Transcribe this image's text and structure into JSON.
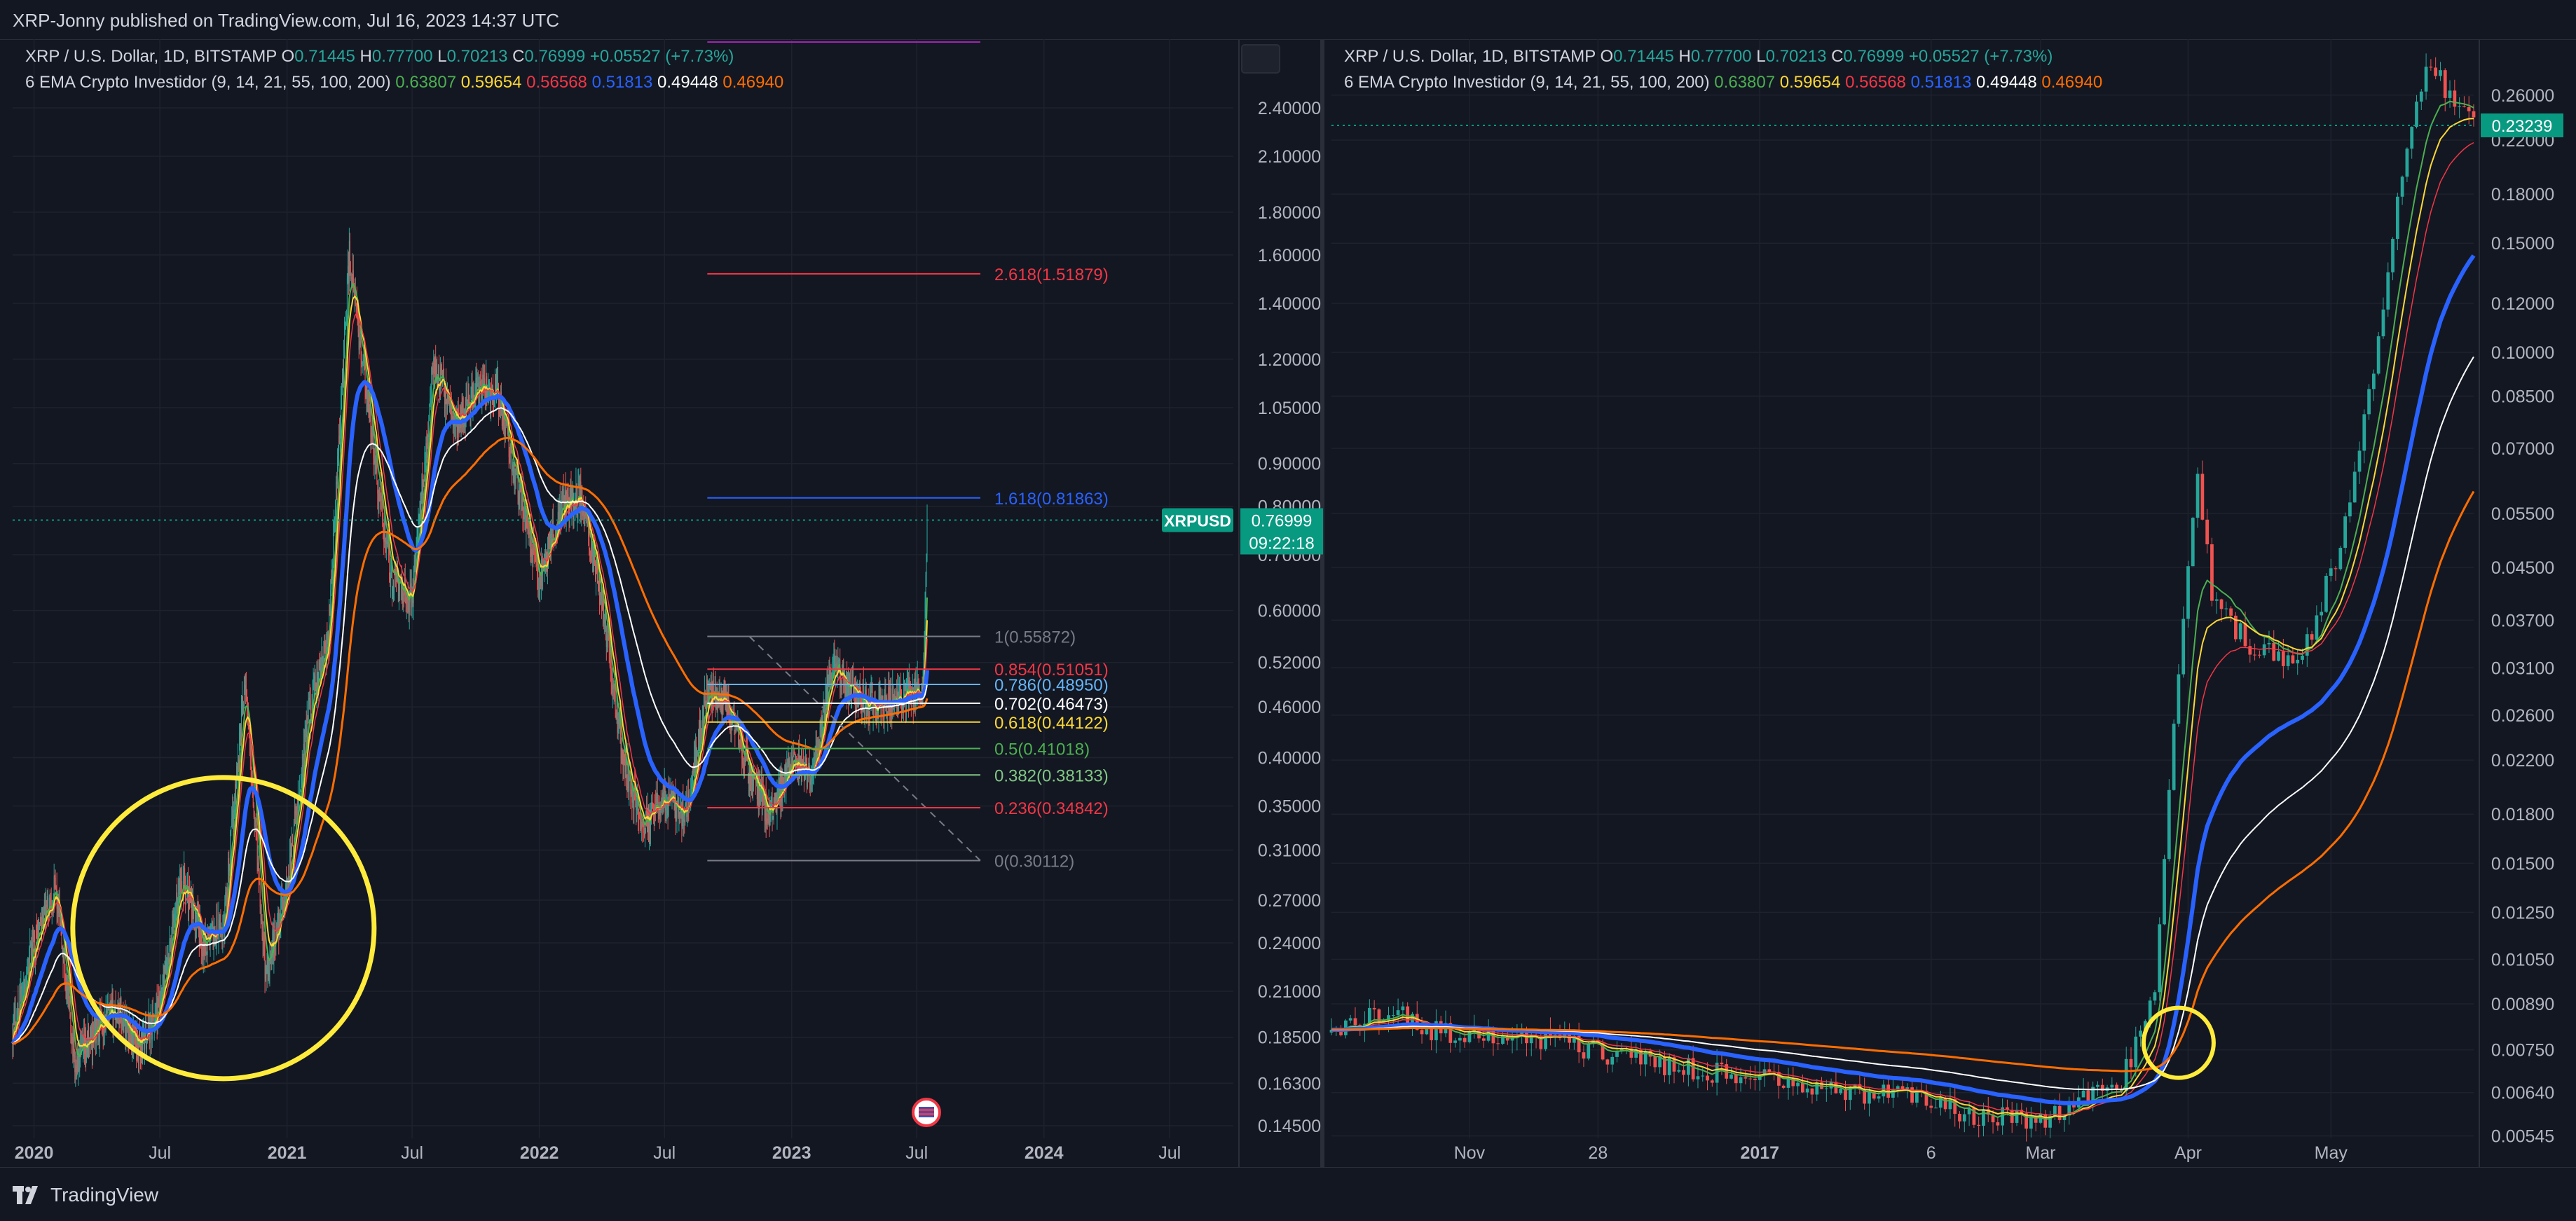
{
  "header": {
    "published_text": "XRP-Jonny published on TradingView.com, Jul 16, 2023 14:37 UTC"
  },
  "footer": {
    "brand": "TradingView"
  },
  "colors": {
    "ema9": "#4caf50",
    "ema14": "#fdd835",
    "ema21": "#f23645",
    "ema55": "#2962ff",
    "ema100": "#ffffff",
    "ema200": "#ff6d00",
    "up": "#26a69a",
    "down": "#ef5350",
    "price_label": "#089981",
    "highlight_circle": "#ffeb3b"
  },
  "chart_data": [
    {
      "type": "line",
      "panel": "left",
      "legend_line1": {
        "symbol": "XRP / U.S. Dollar, 1D, BITSTAMP",
        "o_label": "O",
        "o_value": "0.71445",
        "h_label": "H",
        "h_value": "0.77700",
        "l_label": "L",
        "l_value": "0.70213",
        "c_label": "C",
        "c_value": "0.76999",
        "change": "+0.05527 (+7.73%)"
      },
      "legend_line2": {
        "indicator": "6 EMA Crypto Investidor (9, 14, 21, 55, 100, 200)",
        "values": [
          "0.63807",
          "0.59654",
          "0.56568",
          "0.51813",
          "0.49448",
          "0.46940"
        ]
      },
      "yscale": "log",
      "ylim": [
        0.14,
        2.9
      ],
      "y_ticks": [
        2.4,
        2.1,
        1.8,
        1.6,
        1.4,
        1.2,
        1.05,
        0.9,
        0.8,
        0.7,
        0.6,
        0.52,
        0.46,
        0.4,
        0.35,
        0.31,
        0.27,
        0.24,
        0.21,
        0.185,
        0.163,
        0.145
      ],
      "y_tick_labels": [
        "2.40000",
        "2.10000",
        "1.80000",
        "1.60000",
        "1.40000",
        "1.20000",
        "1.05000",
        "0.90000",
        "0.80000",
        "0.70000",
        "0.60000",
        "0.52000",
        "0.46000",
        "0.40000",
        "0.35000",
        "0.31000",
        "0.27000",
        "0.24000",
        "0.21000",
        "0.18500",
        "0.16300",
        "0.14500"
      ],
      "x_ticks": [
        "2020",
        "Jul",
        "2021",
        "Jul",
        "2022",
        "Jul",
        "2023",
        "Jul",
        "2024",
        "Jul"
      ],
      "x_tick_positions": [
        "2020-01",
        "2020-07",
        "2021-01",
        "2021-07",
        "2022-01",
        "2022-07",
        "2023-01",
        "2023-07",
        "2024-01",
        "2024-07"
      ],
      "x_range": [
        "2019-12",
        "2024-10"
      ],
      "close_series": [
        [
          "2019-12",
          0.19
        ],
        [
          "2020-01",
          0.24
        ],
        [
          "2020-02",
          0.28
        ],
        [
          "2020-03",
          0.17
        ],
        [
          "2020-04",
          0.19
        ],
        [
          "2020-05",
          0.2
        ],
        [
          "2020-06",
          0.18
        ],
        [
          "2020-07",
          0.2
        ],
        [
          "2020-08",
          0.29
        ],
        [
          "2020-09",
          0.24
        ],
        [
          "2020-10",
          0.25
        ],
        [
          "2020-11",
          0.5
        ],
        [
          "2020-12",
          0.22
        ],
        [
          "2021-01",
          0.28
        ],
        [
          "2021-02",
          0.45
        ],
        [
          "2021-03",
          0.55
        ],
        [
          "2021-04",
          1.6
        ],
        [
          "2021-05",
          1.0
        ],
        [
          "2021-06",
          0.65
        ],
        [
          "2021-07",
          0.62
        ],
        [
          "2021-08",
          1.2
        ],
        [
          "2021-09",
          1.0
        ],
        [
          "2021-10",
          1.1
        ],
        [
          "2021-11",
          1.1
        ],
        [
          "2021-12",
          0.85
        ],
        [
          "2022-01",
          0.65
        ],
        [
          "2022-02",
          0.8
        ],
        [
          "2022-03",
          0.82
        ],
        [
          "2022-04",
          0.62
        ],
        [
          "2022-05",
          0.4
        ],
        [
          "2022-06",
          0.33
        ],
        [
          "2022-07",
          0.36
        ],
        [
          "2022-08",
          0.34
        ],
        [
          "2022-09",
          0.48
        ],
        [
          "2022-10",
          0.46
        ],
        [
          "2022-11",
          0.38
        ],
        [
          "2022-12",
          0.34
        ],
        [
          "2023-01",
          0.4
        ],
        [
          "2023-02",
          0.38
        ],
        [
          "2023-03",
          0.52
        ],
        [
          "2023-04",
          0.48
        ],
        [
          "2023-05",
          0.46
        ],
        [
          "2023-06",
          0.47
        ],
        [
          "2023-07-10",
          0.48
        ],
        [
          "2023-07-16",
          0.77
        ]
      ],
      "price_label": {
        "symbol": "XRPUSD",
        "price": "0.76999",
        "countdown": "09:22:18",
        "value": 0.76999
      },
      "fib_levels": [
        {
          "label": "0(0.30112)",
          "value": 0.30112,
          "color": "#787b86"
        },
        {
          "label": "0.236(0.34842)",
          "value": 0.34842,
          "color": "#f23645"
        },
        {
          "label": "0.382(0.38133)",
          "value": 0.38133,
          "color": "#81c784"
        },
        {
          "label": "0.5(0.41018)",
          "value": 0.41018,
          "color": "#4caf50"
        },
        {
          "label": "0.618(0.44122)",
          "value": 0.44122,
          "color": "#fdd835"
        },
        {
          "label": "0.702(0.46473)",
          "value": 0.46473,
          "color": "#ffffff"
        },
        {
          "label": "0.786(0.48950)",
          "value": 0.4895,
          "color": "#64b5f6"
        },
        {
          "label": "0.854(0.51051)",
          "value": 0.51051,
          "color": "#f23645"
        },
        {
          "label": "1(0.55872)",
          "value": 0.55872,
          "color": "#787b86"
        },
        {
          "label": "1.618(0.81863)",
          "value": 0.81863,
          "color": "#2962ff"
        },
        {
          "label": "2.618(1.51879)",
          "value": 1.51879,
          "color": "#f23645"
        }
      ],
      "fib_range": [
        "2022-09",
        "2023-10"
      ],
      "highlight_circle": {
        "center": [
          "2020-10",
          0.25
        ],
        "note": "yellow circle"
      }
    },
    {
      "type": "line",
      "panel": "right",
      "legend_line1": {
        "symbol": "XRP / U.S. Dollar, 1D, BITSTAMP",
        "o_label": "O",
        "o_value": "0.71445",
        "h_label": "H",
        "h_value": "0.77700",
        "l_label": "L",
        "l_value": "0.70213",
        "c_label": "C",
        "c_value": "0.76999",
        "change": "+0.05527 (+7.73%)"
      },
      "legend_line2": {
        "indicator": "6 EMA Crypto Investidor (9, 14, 21, 55, 100, 200)",
        "values": [
          "0.63807",
          "0.59654",
          "0.56568",
          "0.51813",
          "0.49448",
          "0.46940"
        ]
      },
      "yscale": "log",
      "ylim": [
        0.0054,
        0.32
      ],
      "y_ticks": [
        0.26,
        0.22,
        0.18,
        0.15,
        0.12,
        0.1,
        0.085,
        0.07,
        0.055,
        0.045,
        0.037,
        0.031,
        0.026,
        0.022,
        0.018,
        0.015,
        0.0125,
        0.0105,
        0.0089,
        0.0075,
        0.0064,
        0.00545
      ],
      "y_tick_labels": [
        "0.26000",
        "0.22000",
        "0.18000",
        "0.15000",
        "0.12000",
        "0.10000",
        "0.08500",
        "0.07000",
        "0.05500",
        "0.04500",
        "0.03700",
        "0.03100",
        "0.02600",
        "0.02200",
        "0.01800",
        "0.01500",
        "0.01250",
        "0.01050",
        "0.00890",
        "0.00750",
        "0.00640",
        "0.00545"
      ],
      "x_ticks": [
        "Nov",
        "28",
        "2017",
        "6",
        "Mar",
        "Apr",
        "May"
      ],
      "x_tick_positions": [
        "2016-11-01",
        "2016-11-28",
        "2017-01-01",
        "2017-02-06",
        "2017-03-01",
        "2017-04-01",
        "2017-05-01"
      ],
      "x_range": [
        "2016-10-03",
        "2017-05-31"
      ],
      "close_series": [
        [
          "2016-10-03",
          0.008
        ],
        [
          "2016-10-15",
          0.0087
        ],
        [
          "2016-10-25",
          0.008
        ],
        [
          "2016-11-15",
          0.0079
        ],
        [
          "2016-12-01",
          0.0074
        ],
        [
          "2016-12-20",
          0.0069
        ],
        [
          "2017-01-10",
          0.0066
        ],
        [
          "2017-01-30",
          0.0063
        ],
        [
          "2017-02-15",
          0.0059
        ],
        [
          "2017-03-01",
          0.0058
        ],
        [
          "2017-03-10",
          0.0062
        ],
        [
          "2017-03-18",
          0.0067
        ],
        [
          "2017-03-25",
          0.009
        ],
        [
          "2017-03-28",
          0.02
        ],
        [
          "2017-04-01",
          0.045
        ],
        [
          "2017-04-03",
          0.065
        ],
        [
          "2017-04-06",
          0.04
        ],
        [
          "2017-04-15",
          0.033
        ],
        [
          "2017-04-25",
          0.032
        ],
        [
          "2017-05-05",
          0.055
        ],
        [
          "2017-05-12",
          0.12
        ],
        [
          "2017-05-17",
          0.22
        ],
        [
          "2017-05-22",
          0.3
        ],
        [
          "2017-05-27",
          0.25
        ],
        [
          "2017-05-31",
          0.23
        ]
      ],
      "price_label": {
        "price": "0.23239",
        "value": 0.23239
      },
      "highlight_circle": {
        "center": [
          "2017-03-30",
          0.0077
        ],
        "note": "yellow circle"
      }
    }
  ]
}
